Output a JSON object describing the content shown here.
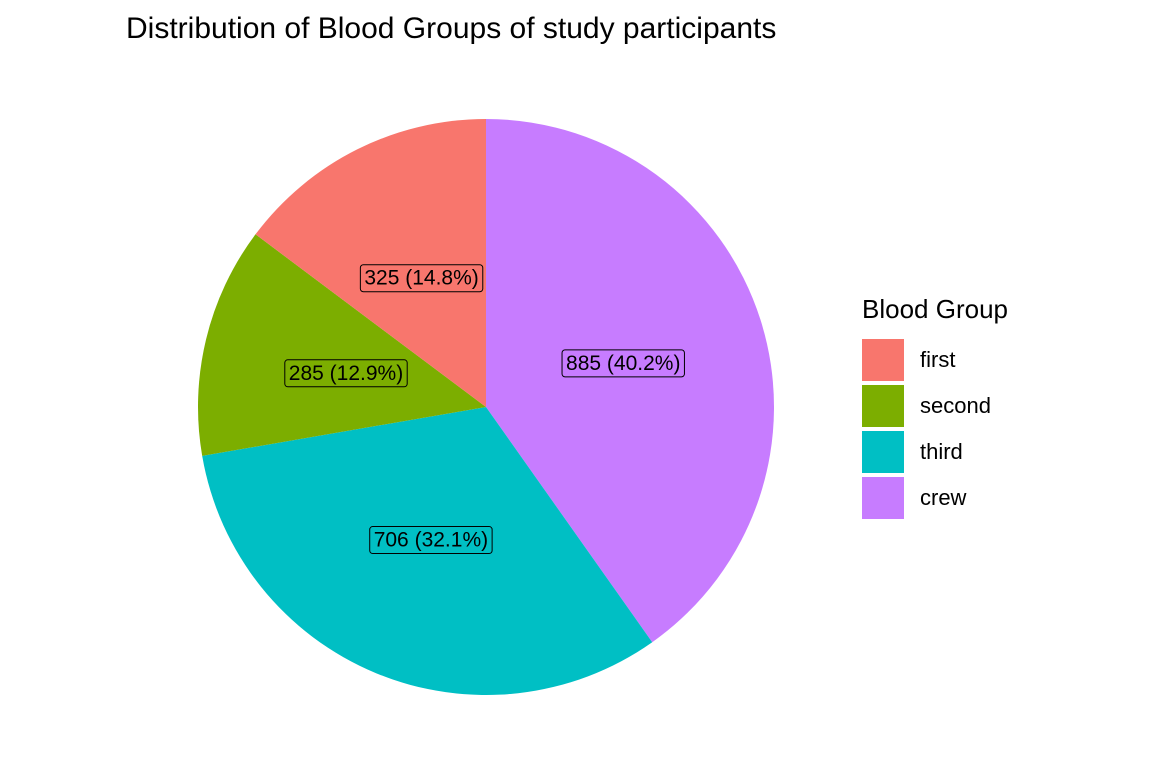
{
  "chart_data": {
    "type": "pie",
    "title": "Distribution of Blood Groups of study participants",
    "legend_title": "Blood Group",
    "legend_position": "right",
    "slices": [
      {
        "name": "first",
        "value": 325,
        "label": "325 (14.8%)",
        "color": "#F8766D"
      },
      {
        "name": "second",
        "value": 285,
        "label": "285 (12.9%)",
        "color": "#7CAE00"
      },
      {
        "name": "third",
        "value": 706,
        "label": "706 (32.1%)",
        "color": "#00BFC4"
      },
      {
        "name": "crew",
        "value": 885,
        "label": "885 (40.2%)",
        "color": "#C77CFF"
      }
    ]
  }
}
